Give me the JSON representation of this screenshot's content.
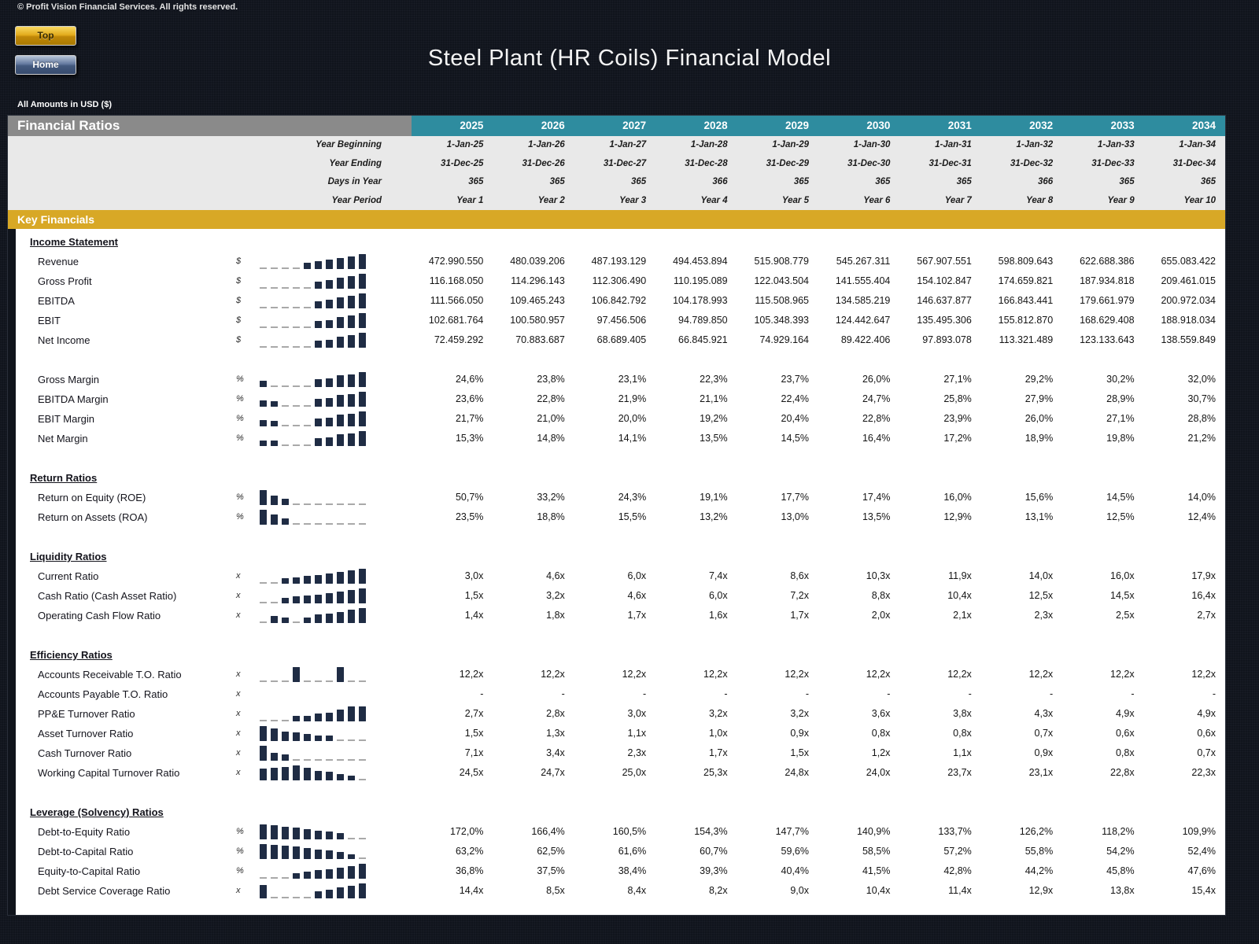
{
  "page": {
    "copyright": "© Profit Vision Financial Services. All rights reserved.",
    "title": "Steel Plant (HR Coils) Financial Model",
    "amounts_note": "All Amounts in  USD ($)",
    "buttons": {
      "top_label": "Top",
      "home_label": "Home"
    }
  },
  "colors": {
    "header_gray": "#8a8a8a",
    "year_teal": "#2e8c9f",
    "band_gold": "#d8a826",
    "spark_bar_navy": "#1f2c44",
    "spark_dash_gray": "#a9a9a9",
    "button_gold": "#e3ac1d",
    "button_blue": "#64799f",
    "page_background": "#10141c"
  },
  "table": {
    "header_title": "Financial Ratios",
    "years": [
      "2025",
      "2026",
      "2027",
      "2028",
      "2029",
      "2030",
      "2031",
      "2032",
      "2033",
      "2034"
    ],
    "meta_rows": [
      {
        "label": "Year Beginning",
        "values": [
          "1-Jan-25",
          "1-Jan-26",
          "1-Jan-27",
          "1-Jan-28",
          "1-Jan-29",
          "1-Jan-30",
          "1-Jan-31",
          "1-Jan-32",
          "1-Jan-33",
          "1-Jan-34"
        ]
      },
      {
        "label": "Year Ending",
        "values": [
          "31-Dec-25",
          "31-Dec-26",
          "31-Dec-27",
          "31-Dec-28",
          "31-Dec-29",
          "31-Dec-30",
          "31-Dec-31",
          "31-Dec-32",
          "31-Dec-33",
          "31-Dec-34"
        ]
      },
      {
        "label": "Days in Year",
        "values": [
          "365",
          "365",
          "365",
          "366",
          "365",
          "365",
          "365",
          "366",
          "365",
          "365"
        ]
      },
      {
        "label": "Year Period",
        "values": [
          "Year 1",
          "Year 2",
          "Year 3",
          "Year 4",
          "Year 5",
          "Year 6",
          "Year 7",
          "Year 8",
          "Year 9",
          "Year 10"
        ]
      }
    ],
    "band_label": "Key Financials",
    "rows": [
      {
        "type": "section",
        "label": "Income Statement"
      },
      {
        "type": "data",
        "label": "Revenue",
        "unit": "$",
        "values": [
          "472.990.550",
          "480.039.206",
          "487.193.129",
          "494.453.894",
          "515.908.779",
          "545.267.311",
          "567.907.551",
          "598.809.643",
          "622.688.386",
          "655.083.422"
        ],
        "nums": [
          472990550,
          480039206,
          487193129,
          494453894,
          515908779,
          545267311,
          567907551,
          598809643,
          622688386,
          655083422
        ]
      },
      {
        "type": "data",
        "label": "Gross Profit",
        "unit": "$",
        "values": [
          "116.168.050",
          "114.296.143",
          "112.306.490",
          "110.195.089",
          "122.043.504",
          "141.555.404",
          "154.102.847",
          "174.659.821",
          "187.934.818",
          "209.461.015"
        ],
        "nums": [
          116168050,
          114296143,
          112306490,
          110195089,
          122043504,
          141555404,
          154102847,
          174659821,
          187934818,
          209461015
        ]
      },
      {
        "type": "data",
        "label": "EBITDA",
        "unit": "$",
        "values": [
          "111.566.050",
          "109.465.243",
          "106.842.792",
          "104.178.993",
          "115.508.965",
          "134.585.219",
          "146.637.877",
          "166.843.441",
          "179.661.979",
          "200.972.034"
        ],
        "nums": [
          111566050,
          109465243,
          106842792,
          104178993,
          115508965,
          134585219,
          146637877,
          166843441,
          179661979,
          200972034
        ]
      },
      {
        "type": "data",
        "label": "EBIT",
        "unit": "$",
        "values": [
          "102.681.764",
          "100.580.957",
          "97.456.506",
          "94.789.850",
          "105.348.393",
          "124.442.647",
          "135.495.306",
          "155.812.870",
          "168.629.408",
          "188.918.034"
        ],
        "nums": [
          102681764,
          100580957,
          97456506,
          94789850,
          105348393,
          124442647,
          135495306,
          155812870,
          168629408,
          188918034
        ]
      },
      {
        "type": "data",
        "label": "Net Income",
        "unit": "$",
        "values": [
          "72.459.292",
          "70.883.687",
          "68.689.405",
          "66.845.921",
          "74.929.164",
          "89.422.406",
          "97.893.078",
          "113.321.489",
          "123.133.643",
          "138.559.849"
        ],
        "nums": [
          72459292,
          70883687,
          68689405,
          66845921,
          74929164,
          89422406,
          97893078,
          113321489,
          123133643,
          138559849
        ]
      },
      {
        "type": "spacer"
      },
      {
        "type": "data",
        "label": "Gross Margin",
        "unit": "%",
        "values": [
          "24,6%",
          "23,8%",
          "23,1%",
          "22,3%",
          "23,7%",
          "26,0%",
          "27,1%",
          "29,2%",
          "30,2%",
          "32,0%"
        ],
        "nums": [
          24.6,
          23.8,
          23.1,
          22.3,
          23.7,
          26.0,
          27.1,
          29.2,
          30.2,
          32.0
        ]
      },
      {
        "type": "data",
        "label": "EBITDA Margin",
        "unit": "%",
        "values": [
          "23,6%",
          "22,8%",
          "21,9%",
          "21,1%",
          "22,4%",
          "24,7%",
          "25,8%",
          "27,9%",
          "28,9%",
          "30,7%"
        ],
        "nums": [
          23.6,
          22.8,
          21.9,
          21.1,
          22.4,
          24.7,
          25.8,
          27.9,
          28.9,
          30.7
        ]
      },
      {
        "type": "data",
        "label": "EBIT Margin",
        "unit": "%",
        "values": [
          "21,7%",
          "21,0%",
          "20,0%",
          "19,2%",
          "20,4%",
          "22,8%",
          "23,9%",
          "26,0%",
          "27,1%",
          "28,8%"
        ],
        "nums": [
          21.7,
          21.0,
          20.0,
          19.2,
          20.4,
          22.8,
          23.9,
          26.0,
          27.1,
          28.8
        ]
      },
      {
        "type": "data",
        "label": "Net Margin",
        "unit": "%",
        "values": [
          "15,3%",
          "14,8%",
          "14,1%",
          "13,5%",
          "14,5%",
          "16,4%",
          "17,2%",
          "18,9%",
          "19,8%",
          "21,2%"
        ],
        "nums": [
          15.3,
          14.8,
          14.1,
          13.5,
          14.5,
          16.4,
          17.2,
          18.9,
          19.8,
          21.2
        ]
      },
      {
        "type": "spacer"
      },
      {
        "type": "section",
        "label": "Return Ratios"
      },
      {
        "type": "data",
        "label": "Return on Equity (ROE)",
        "unit": "%",
        "values": [
          "50,7%",
          "33,2%",
          "24,3%",
          "19,1%",
          "17,7%",
          "17,4%",
          "16,0%",
          "15,6%",
          "14,5%",
          "14,0%"
        ],
        "nums": [
          50.7,
          33.2,
          24.3,
          19.1,
          17.7,
          17.4,
          16.0,
          15.6,
          14.5,
          14.0
        ]
      },
      {
        "type": "data",
        "label": "Return on Assets (ROA)",
        "unit": "%",
        "values": [
          "23,5%",
          "18,8%",
          "15,5%",
          "13,2%",
          "13,0%",
          "13,5%",
          "12,9%",
          "13,1%",
          "12,5%",
          "12,4%"
        ],
        "nums": [
          23.5,
          18.8,
          15.5,
          13.2,
          13.0,
          13.5,
          12.9,
          13.1,
          12.5,
          12.4
        ]
      },
      {
        "type": "spacer"
      },
      {
        "type": "section",
        "label": "Liquidity Ratios"
      },
      {
        "type": "data",
        "label": "Current Ratio",
        "unit": "x",
        "values": [
          "3,0x",
          "4,6x",
          "6,0x",
          "7,4x",
          "8,6x",
          "10,3x",
          "11,9x",
          "14,0x",
          "16,0x",
          "17,9x"
        ],
        "nums": [
          3.0,
          4.6,
          6.0,
          7.4,
          8.6,
          10.3,
          11.9,
          14.0,
          16.0,
          17.9
        ]
      },
      {
        "type": "data",
        "label": "Cash Ratio (Cash Asset Ratio)",
        "unit": "x",
        "values": [
          "1,5x",
          "3,2x",
          "4,6x",
          "6,0x",
          "7,2x",
          "8,8x",
          "10,4x",
          "12,5x",
          "14,5x",
          "16,4x"
        ],
        "nums": [
          1.5,
          3.2,
          4.6,
          6.0,
          7.2,
          8.8,
          10.4,
          12.5,
          14.5,
          16.4
        ]
      },
      {
        "type": "data",
        "label": "Operating Cash Flow Ratio",
        "unit": "x",
        "values": [
          "1,4x",
          "1,8x",
          "1,7x",
          "1,6x",
          "1,7x",
          "2,0x",
          "2,1x",
          "2,3x",
          "2,5x",
          "2,7x"
        ],
        "nums": [
          1.4,
          1.8,
          1.7,
          1.6,
          1.7,
          2.0,
          2.1,
          2.3,
          2.5,
          2.7
        ]
      },
      {
        "type": "spacer"
      },
      {
        "type": "section",
        "label": "Efficiency Ratios"
      },
      {
        "type": "data",
        "label": "Accounts Receivable T.O. Ratio",
        "unit": "x",
        "values": [
          "12,2x",
          "12,2x",
          "12,2x",
          "12,2x",
          "12,2x",
          "12,2x",
          "12,2x",
          "12,2x",
          "12,2x",
          "12,2x"
        ],
        "nums": [
          12.2,
          12.2,
          12.2,
          12.2,
          12.2,
          12.2,
          12.2,
          12.2,
          12.2,
          12.2
        ],
        "spark": [
          0,
          0,
          0,
          1,
          0,
          0,
          0,
          1,
          0,
          0
        ]
      },
      {
        "type": "data",
        "label": "Accounts Payable T.O. Ratio",
        "unit": "x",
        "values": [
          "-",
          "-",
          "-",
          "-",
          "-",
          "-",
          "-",
          "-",
          "-",
          "-"
        ],
        "nums": null
      },
      {
        "type": "data",
        "label": "PP&E Turnover Ratio",
        "unit": "x",
        "values": [
          "2,7x",
          "2,8x",
          "3,0x",
          "3,2x",
          "3,2x",
          "3,6x",
          "3,8x",
          "4,3x",
          "4,9x",
          "4,9x"
        ],
        "nums": [
          2.7,
          2.8,
          3.0,
          3.2,
          3.2,
          3.6,
          3.8,
          4.3,
          4.9,
          4.9
        ]
      },
      {
        "type": "data",
        "label": "Asset Turnover Ratio",
        "unit": "x",
        "values": [
          "1,5x",
          "1,3x",
          "1,1x",
          "1,0x",
          "0,9x",
          "0,8x",
          "0,8x",
          "0,7x",
          "0,6x",
          "0,6x"
        ],
        "nums": [
          1.5,
          1.3,
          1.1,
          1.0,
          0.9,
          0.8,
          0.8,
          0.7,
          0.6,
          0.6
        ]
      },
      {
        "type": "data",
        "label": "Cash Turnover Ratio",
        "unit": "x",
        "values": [
          "7,1x",
          "3,4x",
          "2,3x",
          "1,7x",
          "1,5x",
          "1,2x",
          "1,1x",
          "0,9x",
          "0,8x",
          "0,7x"
        ],
        "nums": [
          7.1,
          3.4,
          2.3,
          1.7,
          1.5,
          1.2,
          1.1,
          0.9,
          0.8,
          0.7
        ]
      },
      {
        "type": "data",
        "label": "Working Capital Turnover Ratio",
        "unit": "x",
        "values": [
          "24,5x",
          "24,7x",
          "25,0x",
          "25,3x",
          "24,8x",
          "24,0x",
          "23,7x",
          "23,1x",
          "22,8x",
          "22,3x"
        ],
        "nums": [
          24.5,
          24.7,
          25.0,
          25.3,
          24.8,
          24.0,
          23.7,
          23.1,
          22.8,
          22.3
        ]
      },
      {
        "type": "spacer"
      },
      {
        "type": "section",
        "label": "Leverage (Solvency) Ratios"
      },
      {
        "type": "data",
        "label": "Debt-to-Equity Ratio",
        "unit": "%",
        "values": [
          "172,0%",
          "166,4%",
          "160,5%",
          "154,3%",
          "147,7%",
          "140,9%",
          "133,7%",
          "126,2%",
          "118,2%",
          "109,9%"
        ],
        "nums": [
          172.0,
          166.4,
          160.5,
          154.3,
          147.7,
          140.9,
          133.7,
          126.2,
          118.2,
          109.9
        ]
      },
      {
        "type": "data",
        "label": "Debt-to-Capital Ratio",
        "unit": "%",
        "values": [
          "63,2%",
          "62,5%",
          "61,6%",
          "60,7%",
          "59,6%",
          "58,5%",
          "57,2%",
          "55,8%",
          "54,2%",
          "52,4%"
        ],
        "nums": [
          63.2,
          62.5,
          61.6,
          60.7,
          59.6,
          58.5,
          57.2,
          55.8,
          54.2,
          52.4
        ]
      },
      {
        "type": "data",
        "label": "Equity-to-Capital Ratio",
        "unit": "%",
        "values": [
          "36,8%",
          "37,5%",
          "38,4%",
          "39,3%",
          "40,4%",
          "41,5%",
          "42,8%",
          "44,2%",
          "45,8%",
          "47,6%"
        ],
        "nums": [
          36.8,
          37.5,
          38.4,
          39.3,
          40.4,
          41.5,
          42.8,
          44.2,
          45.8,
          47.6
        ]
      },
      {
        "type": "data",
        "label": "Debt Service Coverage Ratio",
        "unit": "x",
        "values": [
          "14,4x",
          "8,5x",
          "8,4x",
          "8,2x",
          "9,0x",
          "10,4x",
          "11,4x",
          "12,9x",
          "13,8x",
          "15,4x"
        ],
        "nums": [
          14.4,
          8.5,
          8.4,
          8.2,
          9.0,
          10.4,
          11.4,
          12.9,
          13.8,
          15.4
        ]
      }
    ]
  }
}
